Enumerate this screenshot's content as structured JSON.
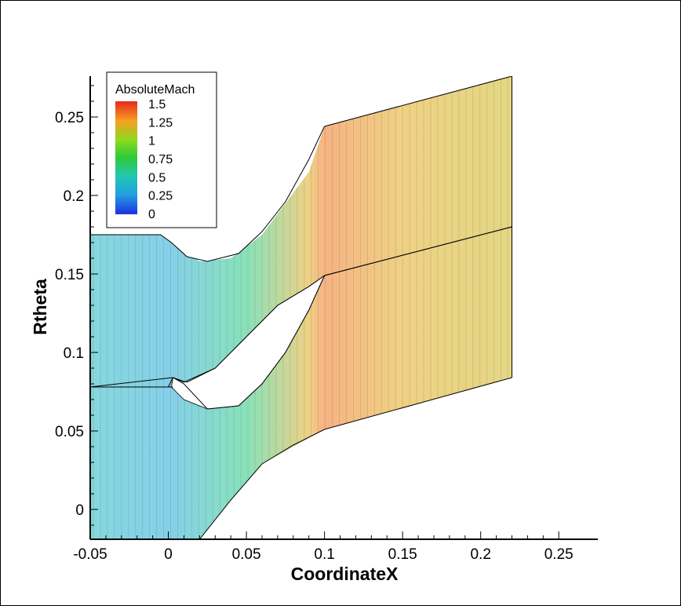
{
  "chart_data": {
    "type": "contour",
    "title": "",
    "xlabel": "CoordinateX",
    "ylabel": "Rtheta",
    "xlim": [
      -0.05,
      0.275
    ],
    "ylim": [
      -0.019,
      0.276
    ],
    "x_ticks": [
      {
        "value": -0.05,
        "label": "-0.05"
      },
      {
        "value": 0,
        "label": "0"
      },
      {
        "value": 0.05,
        "label": "0.05"
      },
      {
        "value": 0.1,
        "label": "0.1"
      },
      {
        "value": 0.15,
        "label": "0.15"
      },
      {
        "value": 0.2,
        "label": "0.2"
      },
      {
        "value": 0.25,
        "label": "0.25"
      }
    ],
    "y_ticks": [
      {
        "value": 0,
        "label": "0"
      },
      {
        "value": 0.05,
        "label": "0.05"
      },
      {
        "value": 0.1,
        "label": "0.1"
      },
      {
        "value": 0.15,
        "label": "0.15"
      },
      {
        "value": 0.2,
        "label": "0.2"
      },
      {
        "value": 0.25,
        "label": "0.25"
      }
    ],
    "legend": {
      "title": "AbsoluteMach",
      "placement": "top-left",
      "levels": [
        {
          "label": "1.5",
          "color": "#e8321e"
        },
        {
          "label": "1.25",
          "color": "#f5a020"
        },
        {
          "label": "1",
          "color": "#8fd81e"
        },
        {
          "label": "0.75",
          "color": "#2ecb3a"
        },
        {
          "label": "0.5",
          "color": "#22c7b0"
        },
        {
          "label": "0.25",
          "color": "#22a0e0"
        },
        {
          "label": "0",
          "color": "#1e3ae0"
        }
      ]
    },
    "domain_outline": [
      [
        -0.05,
        0.175
      ],
      [
        0,
        0.175
      ],
      [
        0.005,
        0.17
      ],
      [
        0.02,
        0.158
      ],
      [
        0.04,
        0.16
      ],
      [
        0.06,
        0.175
      ],
      [
        0.09,
        0.215
      ],
      [
        0.1,
        0.244
      ],
      [
        0.22,
        0.276
      ],
      [
        0.22,
        0.084
      ],
      [
        0.1,
        0.051
      ],
      [
        0.06,
        0.029
      ],
      [
        0.04,
        0.006
      ],
      [
        0.02,
        -0.019
      ],
      [
        -0.05,
        -0.019
      ]
    ],
    "passages": [
      {
        "name": "upper",
        "suction_side": [
          [
            -0.05,
            0.175
          ],
          [
            -0.005,
            0.175
          ],
          [
            0.002,
            0.17
          ],
          [
            0.012,
            0.161
          ],
          [
            0.025,
            0.158
          ],
          [
            0.045,
            0.163
          ],
          [
            0.06,
            0.177
          ],
          [
            0.075,
            0.196
          ],
          [
            0.09,
            0.223
          ],
          [
            0.1,
            0.244
          ]
        ],
        "pressure_side": [
          [
            -0.05,
            0.078
          ],
          [
            0,
            0.078
          ],
          [
            0.003,
            0.084
          ],
          [
            0.01,
            0.081
          ],
          [
            0.03,
            0.09
          ],
          [
            0.05,
            0.11
          ],
          [
            0.07,
            0.13
          ],
          [
            0.09,
            0.142
          ],
          [
            0.1,
            0.149
          ]
        ],
        "wake_top": [
          [
            0.1,
            0.244
          ],
          [
            0.22,
            0.276
          ]
        ],
        "wake_bottom": [
          [
            0.1,
            0.149
          ],
          [
            0.22,
            0.18
          ]
        ]
      },
      {
        "name": "lower",
        "suction_side": [
          [
            -0.05,
            0.078
          ],
          [
            0.003,
            0.084
          ],
          [
            0.01,
            0.08
          ],
          [
            0.025,
            0.064
          ],
          [
            0.045,
            0.066
          ],
          [
            0.06,
            0.08
          ],
          [
            0.075,
            0.1
          ],
          [
            0.09,
            0.127
          ],
          [
            0.1,
            0.149
          ]
        ],
        "pressure_side": [
          [
            -0.05,
            -0.019
          ],
          [
            0.02,
            -0.019
          ],
          [
            0.04,
            0.006
          ],
          [
            0.06,
            0.029
          ],
          [
            0.08,
            0.041
          ],
          [
            0.1,
            0.051
          ]
        ],
        "wake_top": [
          [
            0.1,
            0.149
          ],
          [
            0.22,
            0.18
          ]
        ],
        "wake_bottom": [
          [
            0.1,
            0.051
          ],
          [
            0.22,
            0.084
          ]
        ]
      }
    ],
    "mach_trend": [
      {
        "x": -0.05,
        "mach": 0.4
      },
      {
        "x": 0,
        "mach": 0.3
      },
      {
        "x": 0.05,
        "mach": 0.6
      },
      {
        "x": 0.09,
        "mach": 1.2
      },
      {
        "x": 0.1,
        "mach": 1.35
      },
      {
        "x": 0.15,
        "mach": 1.2
      },
      {
        "x": 0.22,
        "mach": 1.15
      }
    ]
  }
}
